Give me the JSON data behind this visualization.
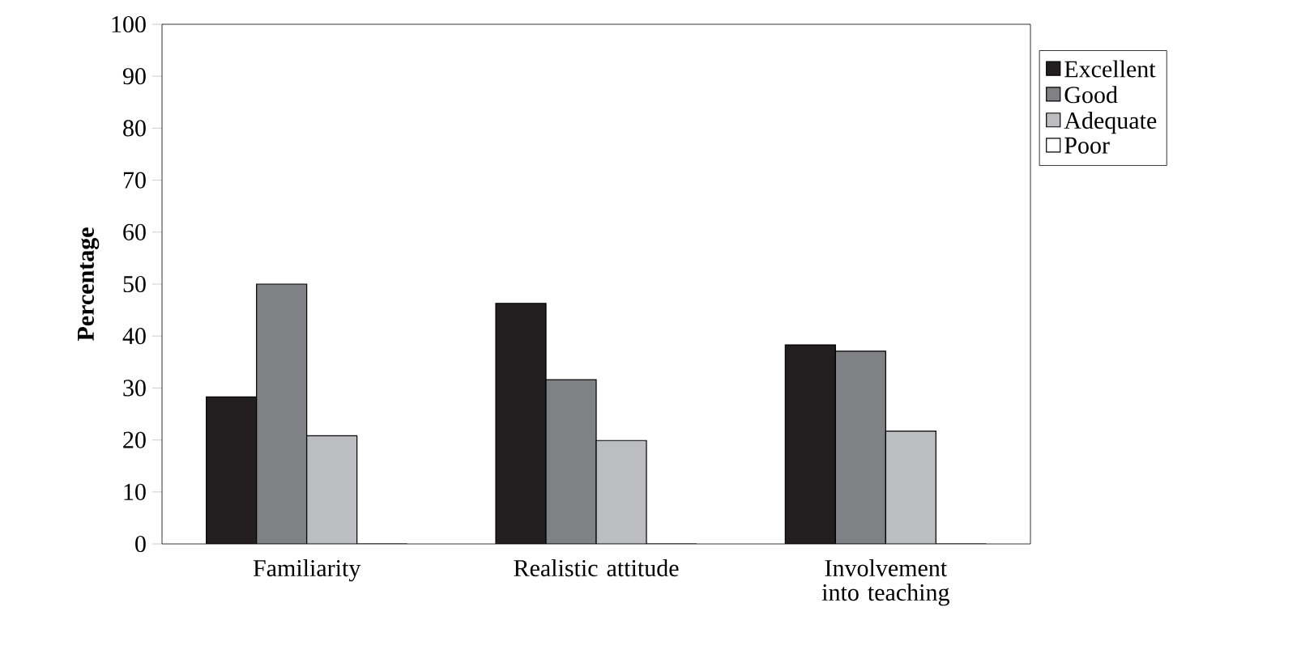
{
  "chart_data": {
    "type": "bar",
    "ylabel": "Percentage",
    "categories": [
      "Familiarity",
      "Realistic attitude",
      "Involvement into teaching"
    ],
    "series": [
      {
        "name": "Excellent",
        "color": "#231f20",
        "values": [
          28.3,
          46.3,
          38.3
        ]
      },
      {
        "name": "Good",
        "color": "#808184",
        "values": [
          50,
          31.6,
          37.1
        ]
      },
      {
        "name": "Adequate",
        "color": "#bcbdc0",
        "values": [
          20.8,
          19.9,
          21.7
        ]
      },
      {
        "name": "Poor",
        "color": "#ffffff",
        "values": [
          0,
          0,
          0
        ]
      }
    ],
    "ylim": [
      0,
      100
    ],
    "yticks": [
      0,
      10,
      20,
      30,
      40,
      50,
      60,
      70,
      80,
      90,
      100
    ],
    "legend": "right",
    "grid": false
  }
}
